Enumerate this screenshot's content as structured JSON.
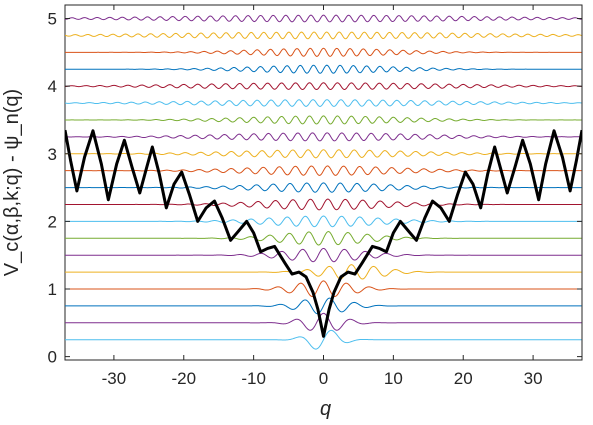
{
  "chart_data": {
    "type": "line",
    "xlabel": "q",
    "ylabel": "V_c(α,β,k;q) - ψ_n(q)",
    "xlim": [
      -37,
      37
    ],
    "ylim": [
      -0.05,
      5.2
    ],
    "x_ticks": [
      "-30",
      "-20",
      "-10",
      "0",
      "10",
      "20",
      "30"
    ],
    "x_tick_values": [
      -30,
      -20,
      -10,
      0,
      10,
      20,
      30
    ],
    "y_ticks": [
      "0",
      "1",
      "2",
      "3",
      "4",
      "5"
    ],
    "y_tick_values": [
      0,
      1,
      2,
      3,
      4,
      5
    ],
    "grid": false,
    "potential": {
      "color": "#000000",
      "points": [
        [
          -37,
          3.35
        ],
        [
          -36.2,
          2.9
        ],
        [
          -35.3,
          2.45
        ],
        [
          -34.2,
          2.95
        ],
        [
          -33,
          3.34
        ],
        [
          -31.8,
          2.85
        ],
        [
          -30.8,
          2.32
        ],
        [
          -29.6,
          2.85
        ],
        [
          -28.5,
          3.2
        ],
        [
          -27.4,
          2.8
        ],
        [
          -26.3,
          2.42
        ],
        [
          -25.3,
          2.8
        ],
        [
          -24.5,
          3.1
        ],
        [
          -23.5,
          2.7
        ],
        [
          -22.5,
          2.2
        ],
        [
          -21.4,
          2.55
        ],
        [
          -20.3,
          2.73
        ],
        [
          -19.2,
          2.4
        ],
        [
          -18,
          2.0
        ],
        [
          -16.8,
          2.2
        ],
        [
          -15.6,
          2.3
        ],
        [
          -14.5,
          2.05
        ],
        [
          -13.3,
          1.72
        ],
        [
          -12.3,
          1.84
        ],
        [
          -11,
          2.0
        ],
        [
          -10,
          1.83
        ],
        [
          -9,
          1.55
        ],
        [
          -8,
          1.6
        ],
        [
          -7,
          1.63
        ],
        [
          -5.5,
          1.38
        ],
        [
          -4.5,
          1.22
        ],
        [
          -3.5,
          1.25
        ],
        [
          -2.5,
          1.18
        ],
        [
          -1.5,
          0.95
        ],
        [
          -0.8,
          0.7
        ],
        [
          0,
          0.3
        ],
        [
          0.8,
          0.7
        ],
        [
          1.5,
          0.95
        ],
        [
          2.5,
          1.18
        ],
        [
          3.5,
          1.25
        ],
        [
          4.5,
          1.22
        ],
        [
          5.5,
          1.38
        ],
        [
          7,
          1.63
        ],
        [
          8,
          1.6
        ],
        [
          9,
          1.55
        ],
        [
          10,
          1.83
        ],
        [
          11,
          2.0
        ],
        [
          12.3,
          1.84
        ],
        [
          13.3,
          1.72
        ],
        [
          14.5,
          2.05
        ],
        [
          15.6,
          2.3
        ],
        [
          16.8,
          2.2
        ],
        [
          18,
          2.0
        ],
        [
          19.2,
          2.4
        ],
        [
          20.3,
          2.73
        ],
        [
          21.4,
          2.55
        ],
        [
          22.5,
          2.2
        ],
        [
          23.5,
          2.7
        ],
        [
          24.5,
          3.1
        ],
        [
          25.3,
          2.8
        ],
        [
          26.3,
          2.42
        ],
        [
          27.4,
          2.8
        ],
        [
          28.5,
          3.2
        ],
        [
          29.6,
          2.85
        ],
        [
          30.8,
          2.32
        ],
        [
          31.8,
          2.85
        ],
        [
          33,
          3.34
        ],
        [
          34.2,
          2.95
        ],
        [
          35.3,
          2.45
        ],
        [
          36.2,
          2.9
        ],
        [
          37,
          3.35
        ]
      ]
    },
    "series_colors": [
      "#0072BD",
      "#D95319",
      "#EDB120",
      "#7E2F8E",
      "#77AC30",
      "#4DBEEE",
      "#A2142F"
    ],
    "levels": [
      {
        "offset": 0.25,
        "color": "#4DBEEE",
        "center": 0,
        "width": 3.5,
        "period": 5,
        "amp": 0.16,
        "mode": "odd"
      },
      {
        "offset": 0.5,
        "color": "#7E2F8E",
        "center": 0,
        "width": 4.5,
        "period": 4,
        "amp": 0.14,
        "mode": "even"
      },
      {
        "offset": 0.75,
        "color": "#0072BD",
        "center": 0,
        "width": 5.5,
        "period": 3.6,
        "amp": 0.12,
        "mode": "odd"
      },
      {
        "offset": 1.0,
        "color": "#D95319",
        "center": 0,
        "width": 6.5,
        "period": 3.3,
        "amp": 0.12,
        "mode": "even"
      },
      {
        "offset": 1.25,
        "color": "#EDB120",
        "center": 4,
        "width": 7,
        "period": 3.2,
        "amp": 0.11,
        "mode": "odd"
      },
      {
        "offset": 1.5,
        "color": "#7E2F8E",
        "center": 0,
        "width": 9,
        "period": 3.0,
        "amp": 0.1,
        "mode": "even"
      },
      {
        "offset": 1.75,
        "color": "#77AC30",
        "center": 0,
        "width": 10,
        "period": 2.8,
        "amp": 0.1,
        "mode": "odd"
      },
      {
        "offset": 2.0,
        "color": "#4DBEEE",
        "center": 0,
        "width": 13,
        "period": 2.6,
        "amp": 0.08,
        "mode": "even"
      },
      {
        "offset": 2.25,
        "color": "#A2142F",
        "center": 0,
        "width": 14,
        "period": 2.5,
        "amp": 0.08,
        "mode": "odd"
      },
      {
        "offset": 2.5,
        "color": "#0072BD",
        "center": 0,
        "width": 15,
        "period": 2.4,
        "amp": 0.07,
        "mode": "even"
      },
      {
        "offset": 2.75,
        "color": "#D95319",
        "center": 0,
        "width": 17,
        "period": 2.3,
        "amp": 0.07,
        "mode": "odd"
      },
      {
        "offset": 3.0,
        "color": "#EDB120",
        "center": 0,
        "width": 20,
        "period": 2.2,
        "amp": 0.06,
        "mode": "even"
      },
      {
        "offset": 3.25,
        "color": "#7E2F8E",
        "center": 0,
        "width": 22,
        "period": 2.1,
        "amp": 0.06,
        "mode": "odd"
      },
      {
        "offset": 3.5,
        "color": "#77AC30",
        "center": 0,
        "width": 18,
        "period": 2.0,
        "amp": 0.06,
        "mode": "even"
      },
      {
        "offset": 3.75,
        "color": "#4DBEEE",
        "center": 0,
        "width": 27,
        "period": 2.0,
        "amp": 0.05,
        "mode": "odd"
      },
      {
        "offset": 4.0,
        "color": "#A2142F",
        "center": 0,
        "width": 28,
        "period": 2.0,
        "amp": 0.05,
        "mode": "even"
      },
      {
        "offset": 4.25,
        "color": "#0072BD",
        "center": 0,
        "width": 16,
        "period": 1.9,
        "amp": 0.06,
        "mode": "odd"
      },
      {
        "offset": 4.5,
        "color": "#D95319",
        "center": 0,
        "width": 16,
        "period": 1.9,
        "amp": 0.06,
        "mode": "even"
      },
      {
        "offset": 4.75,
        "color": "#EDB120",
        "center": 0,
        "width": 34,
        "period": 1.8,
        "amp": 0.05,
        "mode": "odd"
      },
      {
        "offset": 5.0,
        "color": "#7E2F8E",
        "center": 0,
        "width": 34,
        "period": 1.8,
        "amp": 0.05,
        "mode": "even"
      }
    ]
  }
}
